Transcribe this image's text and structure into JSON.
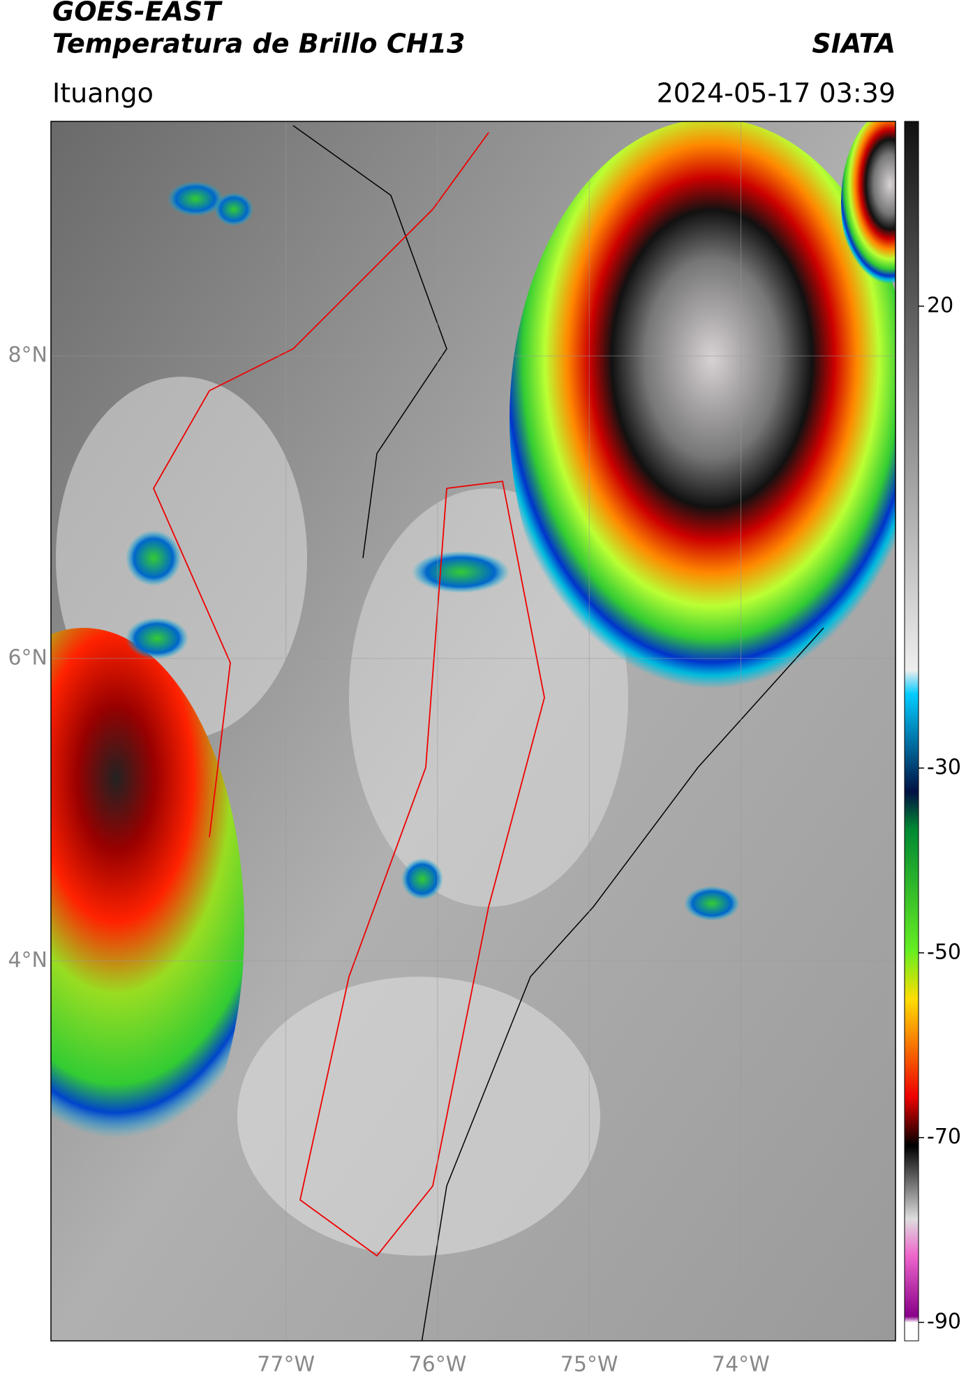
{
  "header": {
    "title": "GOES-EAST",
    "subtitle": "Temperatura de Brillo CH13",
    "source": "SIATA",
    "location": "Ituango",
    "datetime": "2024-05-17 03:39"
  },
  "map": {
    "xlim": [
      -78.55,
      -72.98
    ],
    "ylim": [
      1.49,
      9.55
    ],
    "xticks": [
      {
        "value": -77,
        "label": "77°W"
      },
      {
        "value": -76,
        "label": "76°W"
      },
      {
        "value": -75,
        "label": "75°W"
      },
      {
        "value": -74,
        "label": "74°W"
      }
    ],
    "yticks": [
      {
        "value": 8,
        "label": "8°N"
      },
      {
        "value": 6,
        "label": "6°N"
      },
      {
        "value": 4,
        "label": "4°N"
      }
    ],
    "grid": true
  },
  "colorbar": {
    "lim": [
      -92,
      40
    ],
    "ticks": [
      20,
      -30,
      -50,
      -70,
      -90
    ]
  }
}
